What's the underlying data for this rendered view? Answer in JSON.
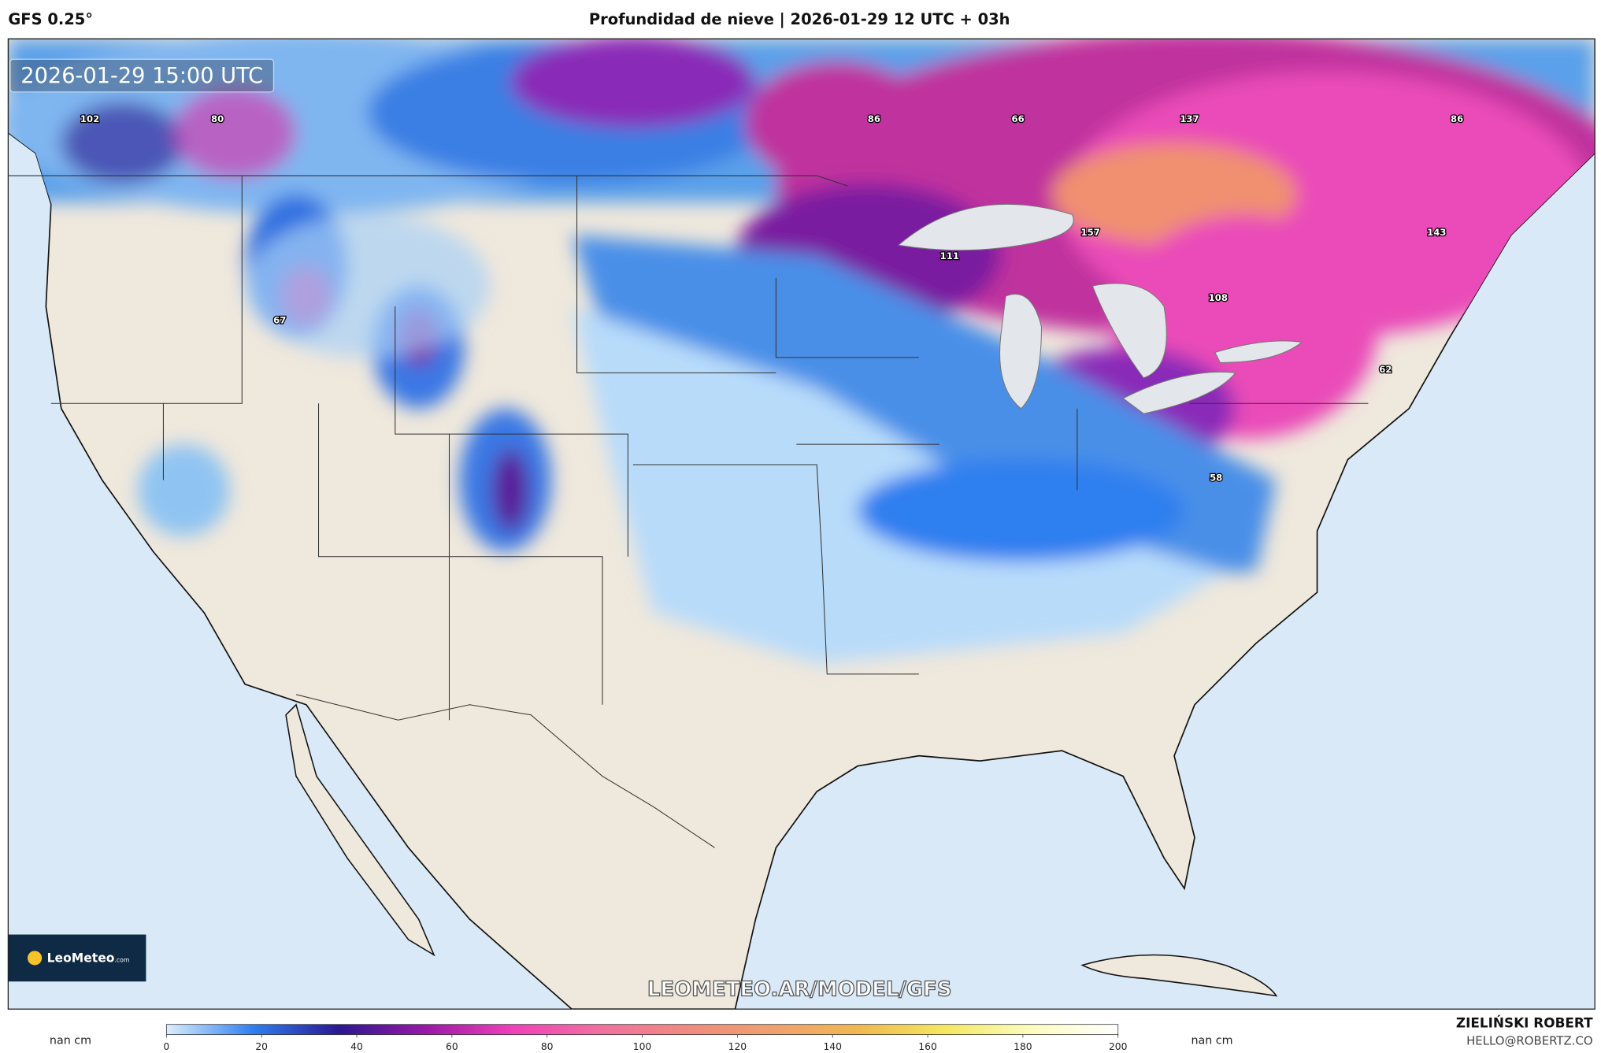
{
  "header": {
    "model": "GFS 0.25°",
    "title": "Profundidad de nieve | 2026-01-29 12 UTC + 03h"
  },
  "map": {
    "timestamp": "2026-01-29 15:00 UTC",
    "labels": [
      102,
      80,
      86,
      66,
      137,
      86,
      157,
      111,
      143,
      108,
      67,
      62,
      58
    ],
    "watermark": "LEOMETEO.AR/MODEL/GFS"
  },
  "logo": {
    "text": "LeoMeteo",
    "suffix": ".com"
  },
  "colorbar": {
    "lim": [
      0,
      200
    ],
    "ticks": [
      0,
      20,
      40,
      60,
      80,
      100,
      120,
      140,
      160,
      180,
      200
    ],
    "colors": [
      "#dbeefc",
      "#2f7ff0",
      "#2a1890",
      "#9a18a8",
      "#f040b8",
      "#f070a0",
      "#f08a80",
      "#f0a070",
      "#f0b850",
      "#f4e860",
      "#fcfcc0",
      "#ffffff"
    ],
    "missing_left": "nan cm",
    "missing_right": "nan cm"
  },
  "credit": {
    "name": "ZIELIŃSKI ROBERT",
    "email": "HELLO@ROBERTZ.CO"
  }
}
